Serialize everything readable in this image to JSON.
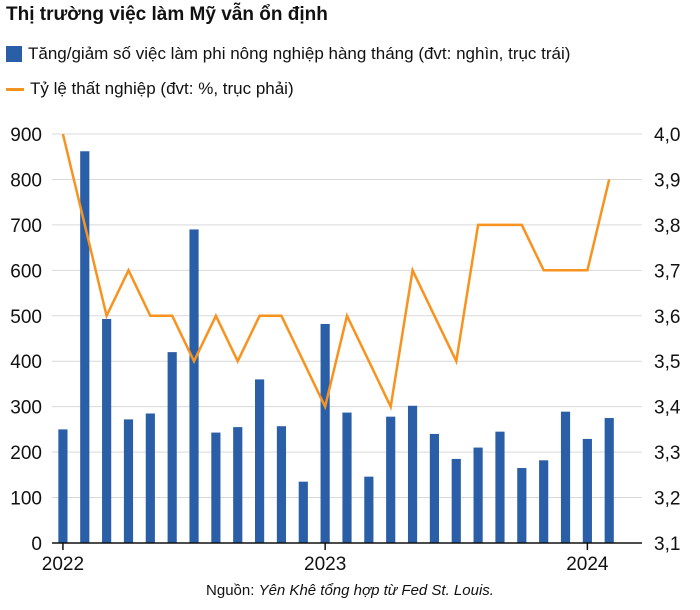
{
  "title": "Thị trường việc làm Mỹ vẫn ổn định",
  "legend": {
    "bars": "Tăng/giảm số việc làm phi nông nghiệp hàng tháng (đvt: nghìn, trục trái)",
    "line": "Tỷ lệ thất nghiệp (đvt: %, trục phải)"
  },
  "source": {
    "prefix": "Nguồn: ",
    "text": "Yên Khê tổng hợp từ Fed St. Louis."
  },
  "colors": {
    "bars": "#2a5fa8",
    "line": "#f7931e",
    "grid": "#d9d9d9"
  },
  "chart_data": {
    "type": "bar+line",
    "title": "Thị trường việc làm Mỹ vẫn ổn định",
    "x": [
      "2022-01",
      "2022-02",
      "2022-03",
      "2022-04",
      "2022-05",
      "2022-06",
      "2022-07",
      "2022-08",
      "2022-09",
      "2022-10",
      "2022-11",
      "2022-12",
      "2023-01",
      "2023-02",
      "2023-03",
      "2023-04",
      "2023-05",
      "2023-06",
      "2023-07",
      "2023-08",
      "2023-09",
      "2023-10",
      "2023-11",
      "2023-12",
      "2024-01",
      "2024-02",
      "2024-03"
    ],
    "x_tick_labels": [
      "2022",
      "2023",
      "2024"
    ],
    "series": [
      {
        "name": "Tăng/giảm số việc làm phi nông nghiệp hàng tháng (đvt: nghìn, trục trái)",
        "type": "bar",
        "axis": "left",
        "values": [
          250,
          862,
          493,
          272,
          285,
          420,
          690,
          243,
          255,
          360,
          257,
          135,
          482,
          287,
          146,
          278,
          302,
          240,
          185,
          210,
          245,
          165,
          182,
          289,
          229,
          275,
          null
        ]
      },
      {
        "name": "Tỷ lệ thất nghiệp (đvt: %, trục phải)",
        "type": "line",
        "axis": "right",
        "values": [
          4.0,
          3.8,
          3.6,
          3.7,
          3.6,
          3.6,
          3.5,
          3.6,
          3.5,
          3.6,
          3.6,
          3.5,
          3.4,
          3.6,
          3.5,
          3.4,
          3.7,
          3.6,
          3.5,
          3.8,
          3.8,
          3.8,
          3.7,
          3.7,
          3.7,
          3.9,
          null
        ]
      }
    ],
    "y_left": {
      "min": 0,
      "max": 900,
      "ticks": [
        "0",
        "100",
        "200",
        "300",
        "400",
        "500",
        "600",
        "700",
        "800",
        "900"
      ]
    },
    "y_right": {
      "min": 3.1,
      "max": 4.0,
      "ticks": [
        "3,1",
        "3,2",
        "3,3",
        "3,4",
        "3,5",
        "3,6",
        "3,7",
        "3,8",
        "3,9",
        "4,0"
      ]
    },
    "grid": true
  }
}
